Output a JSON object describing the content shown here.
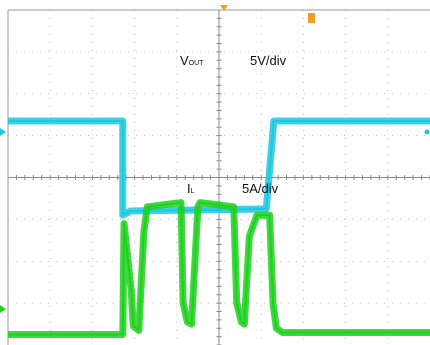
{
  "chart_data": [
    {
      "type": "line",
      "channel": "VOUT",
      "label_main": "V",
      "label_sub": "OUT",
      "scale_label": "5V/div",
      "color": "#1ec8e0",
      "x_unit": "div",
      "y_unit": "div",
      "series": [
        {
          "name": "VOUT",
          "x": [
            0.0,
            2.72,
            2.72,
            2.9,
            6.12,
            6.3,
            10.0
          ],
          "y": [
            5.35,
            5.35,
            3.1,
            3.2,
            3.25,
            5.35,
            5.35
          ]
        }
      ]
    },
    {
      "type": "line",
      "channel": "IL",
      "label_main": "I",
      "label_sub": "L",
      "scale_label": "5A/div",
      "color": "#1fd01f",
      "x_unit": "div",
      "y_unit": "div",
      "series": [
        {
          "name": "IL",
          "x": [
            0.0,
            2.72,
            2.75,
            2.92,
            2.97,
            3.1,
            3.22,
            3.3,
            4.1,
            4.15,
            4.25,
            4.35,
            4.5,
            4.55,
            5.35,
            5.42,
            5.53,
            5.6,
            5.72,
            5.9,
            6.2,
            6.28,
            6.36,
            6.5,
            10.0
          ],
          "y": [
            0.25,
            0.25,
            2.9,
            1.3,
            0.45,
            0.35,
            2.7,
            3.3,
            3.4,
            1.0,
            0.55,
            0.5,
            3.3,
            3.4,
            3.3,
            1.0,
            0.55,
            0.5,
            2.6,
            3.1,
            3.1,
            1.0,
            0.4,
            0.3,
            0.3
          ]
        }
      ]
    }
  ],
  "scope": {
    "grid_divisions_x": 10,
    "grid_divisions_y": 8,
    "trigger_marker_color": "#f0a020",
    "ch1_marker_color": "#1ec8e0",
    "ch2_marker_color": "#1fd01f"
  }
}
